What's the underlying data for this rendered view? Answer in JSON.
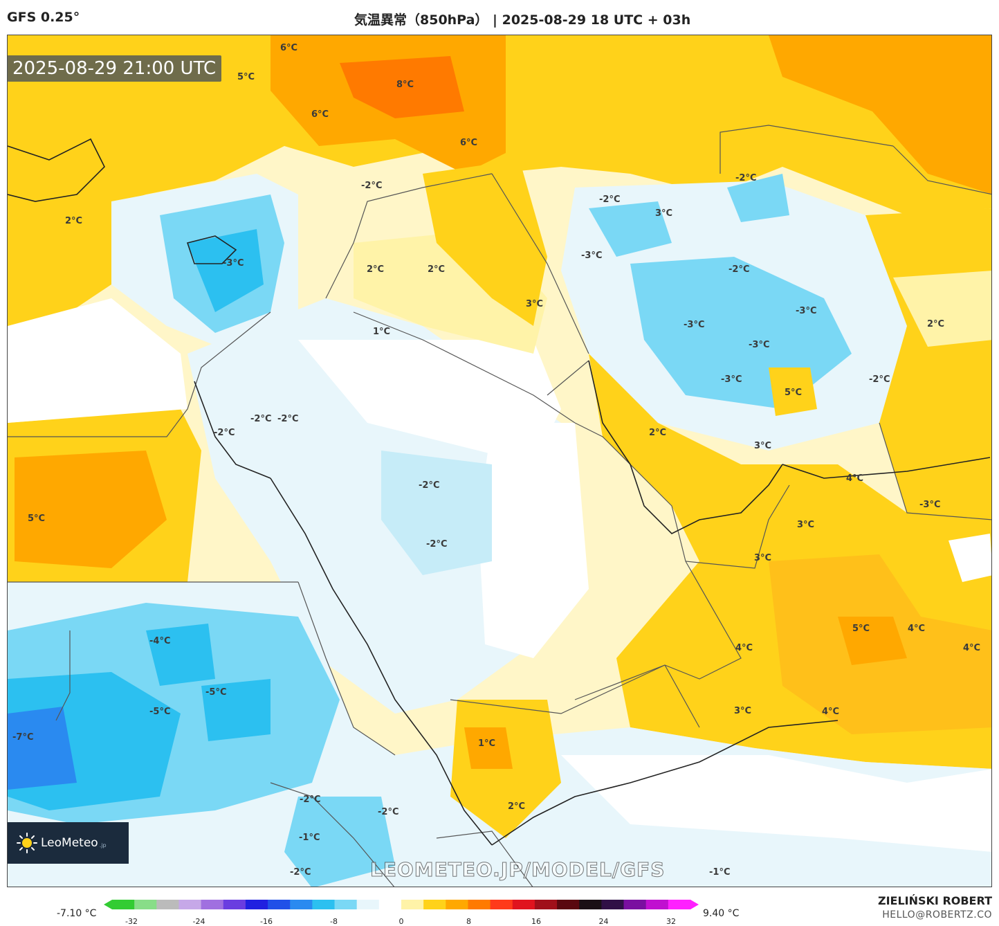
{
  "header": {
    "model": "GFS 0.25°",
    "title": "気温異常（850hPa） | 2025-08-29 18 UTC + 03h"
  },
  "map": {
    "timestamp": "2025-08-29 21:00 UTC",
    "watermark": "LEOMETEO.JP/MODEL/GFS",
    "labels": [
      {
        "id": "l1",
        "text": "6°C"
      },
      {
        "id": "l2",
        "text": "5°C"
      },
      {
        "id": "l3",
        "text": "8°C"
      },
      {
        "id": "l4",
        "text": "6°C"
      },
      {
        "id": "l5",
        "text": "6°C"
      },
      {
        "id": "l6",
        "text": "-2°C"
      },
      {
        "id": "l7",
        "text": "-2°C"
      },
      {
        "id": "l8",
        "text": "-2°C"
      },
      {
        "id": "l9",
        "text": "3°C"
      },
      {
        "id": "l10",
        "text": "2°C"
      },
      {
        "id": "l11",
        "text": "-3°C"
      },
      {
        "id": "l12",
        "text": "-3°C"
      },
      {
        "id": "l13",
        "text": "2°C"
      },
      {
        "id": "l14",
        "text": "2°C"
      },
      {
        "id": "l15",
        "text": "-2°C"
      },
      {
        "id": "l16",
        "text": "3°C"
      },
      {
        "id": "l17",
        "text": "-3°C"
      },
      {
        "id": "l18",
        "text": "1°C"
      },
      {
        "id": "l19",
        "text": "-3°C"
      },
      {
        "id": "l20",
        "text": "-3°C"
      },
      {
        "id": "l21",
        "text": "2°C"
      },
      {
        "id": "l22",
        "text": "-3°C"
      },
      {
        "id": "l23",
        "text": "-2°C"
      },
      {
        "id": "l24",
        "text": "5°C"
      },
      {
        "id": "l25",
        "text": "-2°C"
      },
      {
        "id": "l26",
        "text": "-2°C"
      },
      {
        "id": "l27",
        "text": "-2°C"
      },
      {
        "id": "l28",
        "text": "2°C"
      },
      {
        "id": "l29",
        "text": "3°C"
      },
      {
        "id": "l30",
        "text": "-2°C"
      },
      {
        "id": "l31",
        "text": "4°C"
      },
      {
        "id": "l32",
        "text": "5°C"
      },
      {
        "id": "l33",
        "text": "-3°C"
      },
      {
        "id": "l34",
        "text": "3°C"
      },
      {
        "id": "l35",
        "text": "-2°C"
      },
      {
        "id": "l36",
        "text": "3°C"
      },
      {
        "id": "l37",
        "text": "5°C"
      },
      {
        "id": "l38",
        "text": "4°C"
      },
      {
        "id": "l39",
        "text": "4°C"
      },
      {
        "id": "l40",
        "text": "-4°C"
      },
      {
        "id": "l41",
        "text": "4°C"
      },
      {
        "id": "l42",
        "text": "-5°C"
      },
      {
        "id": "l43",
        "text": "-5°C"
      },
      {
        "id": "l44",
        "text": "3°C"
      },
      {
        "id": "l45",
        "text": "4°C"
      },
      {
        "id": "l46",
        "text": "-7°C"
      },
      {
        "id": "l47",
        "text": "1°C"
      },
      {
        "id": "l48",
        "text": "-2°C"
      },
      {
        "id": "l49",
        "text": "-2°C"
      },
      {
        "id": "l50",
        "text": "2°C"
      },
      {
        "id": "l51",
        "text": "-1°C"
      },
      {
        "id": "l52",
        "text": "-2°C"
      },
      {
        "id": "l53",
        "text": "-1°C"
      }
    ]
  },
  "logo": {
    "brand": "LeoMeteo",
    "suffix": ".jp"
  },
  "colorbar": {
    "min_label": "-7.10 °C",
    "max_label": "9.40 °C",
    "ticks": [
      "-32",
      "-24",
      "-16",
      "-8",
      "0",
      "8",
      "16",
      "24",
      "32"
    ],
    "colors": [
      "#33cc33",
      "#88dd88",
      "#bbbbbb",
      "#c6a8e8",
      "#a070e0",
      "#6a3de0",
      "#2020e0",
      "#2050e8",
      "#2a8af0",
      "#2cc0f0",
      "#7ad8f5",
      "#e8f6fb",
      "#ffffff",
      "#fff3a8",
      "#ffd21a",
      "#ffa800",
      "#ff7a00",
      "#ff3a1a",
      "#e0141e",
      "#a0101a",
      "#5a0810",
      "#1a1016",
      "#301046",
      "#7a10a0",
      "#c010d0",
      "#ff20ff"
    ]
  },
  "credit": {
    "name": "ZIELIŃSKI ROBERT",
    "email": "HELLO@ROBERTZ.CO"
  }
}
